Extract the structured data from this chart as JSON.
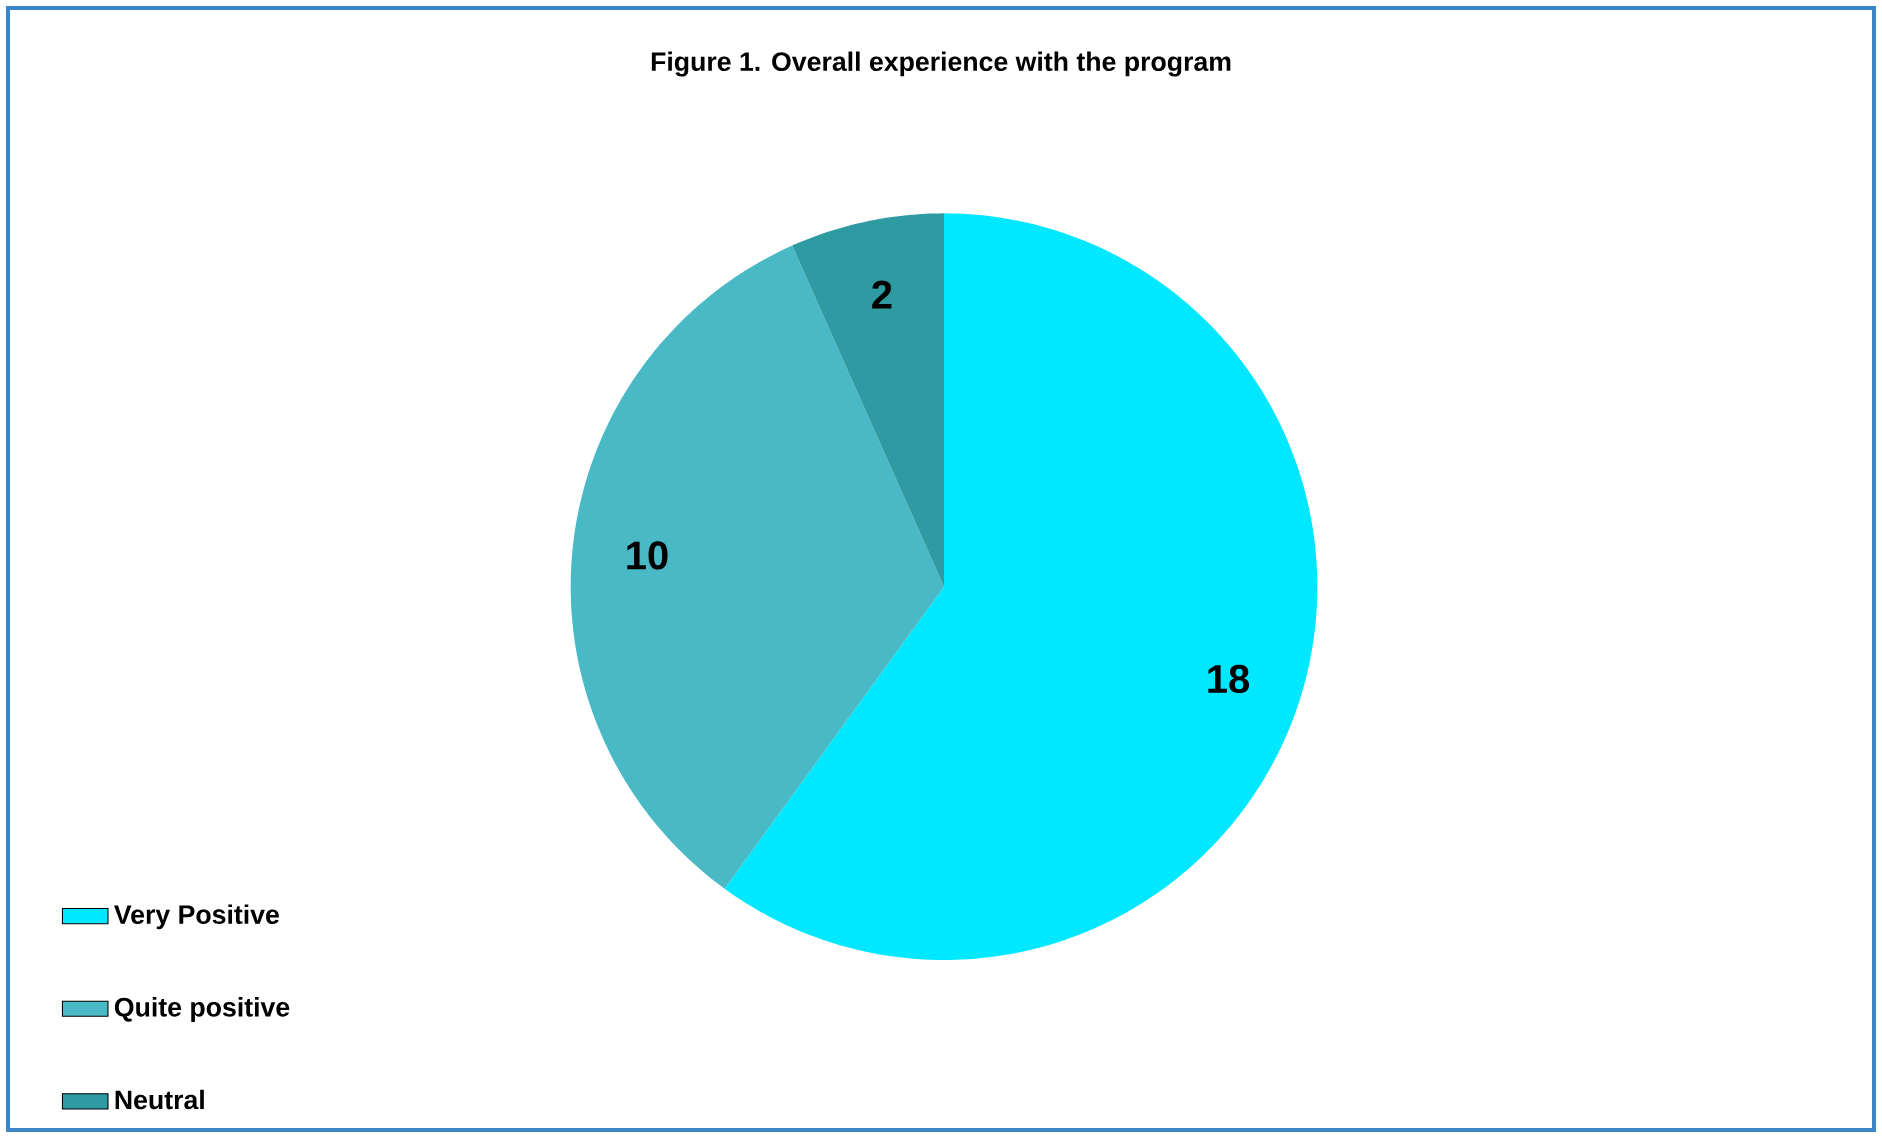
{
  "chart_data": {
    "type": "pie",
    "title": "Figure 1. Overall experience with the program",
    "categories": [
      "Very Positive",
      "Quite positive",
      "Neutral"
    ],
    "values": [
      18,
      10,
      2
    ],
    "colors": [
      "#00e8ff",
      "#48b9c5",
      "#2e9aa2"
    ],
    "data_labels": true,
    "legend": "bottom left"
  }
}
